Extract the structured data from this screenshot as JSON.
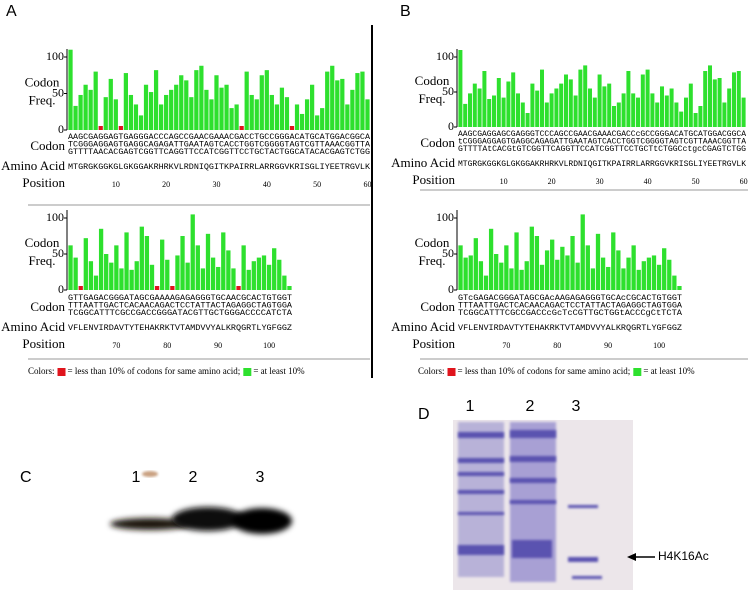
{
  "panel_labels": [
    "A",
    "B",
    "C",
    "D"
  ],
  "chart_data": [
    {
      "type": "bar",
      "ylabel": [
        "Codon",
        "Freq."
      ],
      "ylim": [
        0,
        100
      ],
      "yticks": [
        0,
        50,
        100
      ],
      "xlim": [
        1,
        60
      ],
      "xticks": [
        10,
        20,
        30,
        40,
        50,
        60
      ],
      "row_labels": [
        "Codon",
        "Amino Acid",
        "Position"
      ],
      "codons": [
        "AAGCGAGGAGTGAGGGACCCAGCCGAACGAAACGACCTGCCGGGACATGCATGGACGGCA",
        "TCGGGAGGAGTGAGGCAGAGATTGAATAGTCACCTGGTCGGGGTAGTCGTTAAACGGTTA",
        "GTTTTAACACGAGTCGGTTCAGGTTCCATCGGTTCCTGCTACTGGCATACACGAGTCTGG"
      ],
      "amino_acids": "MTGRGKGGKGLGKGGAKRHRKVLRDNIQGITKPAIRRLARRGGVKRISGLIYEETRGVLK",
      "values": [
        110,
        33,
        48,
        62,
        55,
        80,
        5,
        45,
        70,
        42,
        5,
        78,
        48,
        35,
        20,
        62,
        52,
        82,
        35,
        48,
        55,
        62,
        75,
        68,
        45,
        82,
        88,
        55,
        42,
        75,
        58,
        62,
        30,
        35,
        5,
        80,
        48,
        42,
        75,
        82,
        48,
        35,
        58,
        45,
        5,
        35,
        22,
        42,
        62,
        20,
        30,
        80,
        88,
        68,
        70,
        35,
        55,
        78,
        80,
        42
      ],
      "colors": [
        "#2ee02e",
        "#2ee02e",
        "#2ee02e",
        "#2ee02e",
        "#2ee02e",
        "#2ee02e",
        "#e0141c",
        "#2ee02e",
        "#2ee02e",
        "#2ee02e",
        "#e0141c",
        "#2ee02e",
        "#2ee02e",
        "#2ee02e",
        "#2ee02e",
        "#2ee02e",
        "#2ee02e",
        "#2ee02e",
        "#2ee02e",
        "#2ee02e",
        "#2ee02e",
        "#2ee02e",
        "#2ee02e",
        "#2ee02e",
        "#2ee02e",
        "#2ee02e",
        "#2ee02e",
        "#2ee02e",
        "#2ee02e",
        "#2ee02e",
        "#2ee02e",
        "#2ee02e",
        "#2ee02e",
        "#2ee02e",
        "#e0141c",
        "#2ee02e",
        "#2ee02e",
        "#2ee02e",
        "#2ee02e",
        "#2ee02e",
        "#2ee02e",
        "#2ee02e",
        "#2ee02e",
        "#2ee02e",
        "#e0141c",
        "#2ee02e",
        "#2ee02e",
        "#2ee02e",
        "#2ee02e",
        "#2ee02e",
        "#2ee02e",
        "#2ee02e",
        "#2ee02e",
        "#2ee02e",
        "#2ee02e",
        "#2ee02e",
        "#2ee02e",
        "#2ee02e",
        "#2ee02e",
        "#2ee02e"
      ]
    },
    {
      "type": "bar",
      "ylabel": [
        "Codon",
        "Freq."
      ],
      "ylim": [
        0,
        100
      ],
      "yticks": [
        0,
        50,
        100
      ],
      "xlim": [
        61,
        104
      ],
      "xticks": [
        70,
        80,
        90,
        100
      ],
      "row_labels": [
        "Codon",
        "Amino Acid",
        "Position"
      ],
      "codons": [
        "GTTGAGACGGGATAGCGAAAAGAGAGGGTGCAACGCACTGTGGT",
        "TTTAATTGACTCACAACAGACTCCTATTACTAGAGGCTAGTGGA",
        "TCGGCATTTCGCCGACCGGGATACGTTGCTGGGACCCCATCTA"
      ],
      "amino_acids": "VFLENVIRDAVTYTEHAKRKTVTAMDVVYALKRQGRTLYGFGGZ",
      "values": [
        62,
        45,
        5,
        72,
        40,
        20,
        85,
        50,
        38,
        62,
        30,
        80,
        28,
        40,
        88,
        75,
        35,
        5,
        70,
        42,
        5,
        48,
        75,
        38,
        105,
        62,
        30,
        78,
        45,
        32,
        80,
        55,
        30,
        5,
        62,
        28,
        40,
        45,
        48,
        35,
        58,
        42,
        20,
        8
      ],
      "colors": [
        "#2ee02e",
        "#2ee02e",
        "#e0141c",
        "#2ee02e",
        "#2ee02e",
        "#2ee02e",
        "#2ee02e",
        "#2ee02e",
        "#2ee02e",
        "#2ee02e",
        "#2ee02e",
        "#2ee02e",
        "#2ee02e",
        "#2ee02e",
        "#2ee02e",
        "#2ee02e",
        "#2ee02e",
        "#e0141c",
        "#2ee02e",
        "#2ee02e",
        "#e0141c",
        "#2ee02e",
        "#2ee02e",
        "#2ee02e",
        "#2ee02e",
        "#2ee02e",
        "#2ee02e",
        "#2ee02e",
        "#2ee02e",
        "#2ee02e",
        "#2ee02e",
        "#2ee02e",
        "#2ee02e",
        "#e0141c",
        "#2ee02e",
        "#2ee02e",
        "#2ee02e",
        "#2ee02e",
        "#2ee02e",
        "#2ee02e",
        "#2ee02e",
        "#2ee02e",
        "#2ee02e",
        "#2ee02e"
      ],
      "legend": {
        "prefix": "Colors:",
        "entries": [
          {
            "color": "#e0141c",
            "label": "= less than 10% of codons for same amino acid;"
          },
          {
            "color": "#2ee02e",
            "label": "= at least 10%"
          }
        ]
      }
    },
    {
      "type": "bar",
      "ylabel": [
        "Codon",
        "Freq."
      ],
      "ylim": [
        0,
        100
      ],
      "yticks": [
        0,
        50,
        100
      ],
      "xlim": [
        1,
        60
      ],
      "xticks": [
        10,
        20,
        30,
        40,
        50,
        60
      ],
      "row_labels": [
        "Codon",
        "Amino Acid",
        "Position"
      ],
      "codons": [
        "AAGCGAGGAGCGAGGGTCCCAGCCGAACGAAACGACCcGCCGGGACATGCATGGACGGCA",
        "tCGGGAGGAGTGAGGCAGAGATTGAATAGTCACCTGGTCGGGGTAGTCGTTAAACGGTTA",
        "GTTTTAtCACGtGTCGGTTCAGGTTCCATCGGTTCCTGCTtCTGGCctgcCGAGTCTGG"
      ],
      "amino_acids": "MTGRGKGGKGLGKGGAKRHRKVLRDNIQGITKPAIRRLARRGGVKRISGLIYEETRGVLK",
      "values": [
        110,
        33,
        48,
        62,
        55,
        80,
        40,
        45,
        70,
        42,
        65,
        78,
        48,
        35,
        20,
        62,
        52,
        82,
        35,
        48,
        55,
        62,
        75,
        68,
        45,
        82,
        88,
        55,
        42,
        75,
        58,
        62,
        30,
        35,
        48,
        80,
        48,
        42,
        75,
        82,
        48,
        35,
        58,
        45,
        55,
        35,
        22,
        42,
        62,
        20,
        30,
        80,
        88,
        68,
        70,
        35,
        55,
        78,
        80,
        42
      ],
      "colors": [
        "#2ee02e",
        "#2ee02e",
        "#2ee02e",
        "#2ee02e",
        "#2ee02e",
        "#2ee02e",
        "#2ee02e",
        "#2ee02e",
        "#2ee02e",
        "#2ee02e",
        "#2ee02e",
        "#2ee02e",
        "#2ee02e",
        "#2ee02e",
        "#2ee02e",
        "#2ee02e",
        "#2ee02e",
        "#2ee02e",
        "#2ee02e",
        "#2ee02e",
        "#2ee02e",
        "#2ee02e",
        "#2ee02e",
        "#2ee02e",
        "#2ee02e",
        "#2ee02e",
        "#2ee02e",
        "#2ee02e",
        "#2ee02e",
        "#2ee02e",
        "#2ee02e",
        "#2ee02e",
        "#2ee02e",
        "#2ee02e",
        "#2ee02e",
        "#2ee02e",
        "#2ee02e",
        "#2ee02e",
        "#2ee02e",
        "#2ee02e",
        "#2ee02e",
        "#2ee02e",
        "#2ee02e",
        "#2ee02e",
        "#2ee02e",
        "#2ee02e",
        "#2ee02e",
        "#2ee02e",
        "#2ee02e",
        "#2ee02e",
        "#2ee02e",
        "#2ee02e",
        "#2ee02e",
        "#2ee02e",
        "#2ee02e",
        "#2ee02e",
        "#2ee02e",
        "#2ee02e",
        "#2ee02e",
        "#2ee02e"
      ]
    },
    {
      "type": "bar",
      "ylabel": [
        "Codon",
        "Freq."
      ],
      "ylim": [
        0,
        100
      ],
      "yticks": [
        0,
        50,
        100
      ],
      "xlim": [
        61,
        104
      ],
      "xticks": [
        70,
        80,
        90,
        100
      ],
      "row_labels": [
        "Codon",
        "Amino Acid",
        "Position"
      ],
      "codons": [
        "GTcGAGACGGGATAGCGAcAAGAGAGGGTGCAcCGCACTGTGGT",
        "TTTAATTGACTCACAACAGACTCCTATTACTAGAGGCTAGTGGA",
        "TCGGCATTTCGCCGACCcGcTcCGTTGCTGGtACCCgCtTCTA"
      ],
      "amino_acids": "VFLENVIRDAVTYTEHAKRKTVTAMDVVYALKRQGRTLYGFGGZ",
      "values": [
        62,
        45,
        48,
        72,
        40,
        20,
        85,
        50,
        38,
        62,
        30,
        80,
        28,
        40,
        88,
        75,
        35,
        55,
        70,
        42,
        60,
        48,
        75,
        38,
        105,
        62,
        30,
        78,
        45,
        32,
        80,
        55,
        30,
        45,
        62,
        28,
        40,
        45,
        48,
        35,
        58,
        42,
        20,
        8
      ],
      "colors": [
        "#2ee02e",
        "#2ee02e",
        "#2ee02e",
        "#2ee02e",
        "#2ee02e",
        "#2ee02e",
        "#2ee02e",
        "#2ee02e",
        "#2ee02e",
        "#2ee02e",
        "#2ee02e",
        "#2ee02e",
        "#2ee02e",
        "#2ee02e",
        "#2ee02e",
        "#2ee02e",
        "#2ee02e",
        "#2ee02e",
        "#2ee02e",
        "#2ee02e",
        "#2ee02e",
        "#2ee02e",
        "#2ee02e",
        "#2ee02e",
        "#2ee02e",
        "#2ee02e",
        "#2ee02e",
        "#2ee02e",
        "#2ee02e",
        "#2ee02e",
        "#2ee02e",
        "#2ee02e",
        "#2ee02e",
        "#2ee02e",
        "#2ee02e",
        "#2ee02e",
        "#2ee02e",
        "#2ee02e",
        "#2ee02e",
        "#2ee02e",
        "#2ee02e",
        "#2ee02e",
        "#2ee02e",
        "#2ee02e"
      ],
      "legend": {
        "prefix": "Colors:",
        "entries": [
          {
            "color": "#e0141c",
            "label": "= less than 10% of codons for same amino acid;"
          },
          {
            "color": "#2ee02e",
            "label": "= at least 10%"
          }
        ]
      }
    }
  ],
  "gel_c": {
    "lanes": [
      "1",
      "2",
      "3"
    ]
  },
  "gel_d": {
    "lanes": [
      "1",
      "2",
      "3"
    ],
    "annotation": "H4K16Ac"
  }
}
